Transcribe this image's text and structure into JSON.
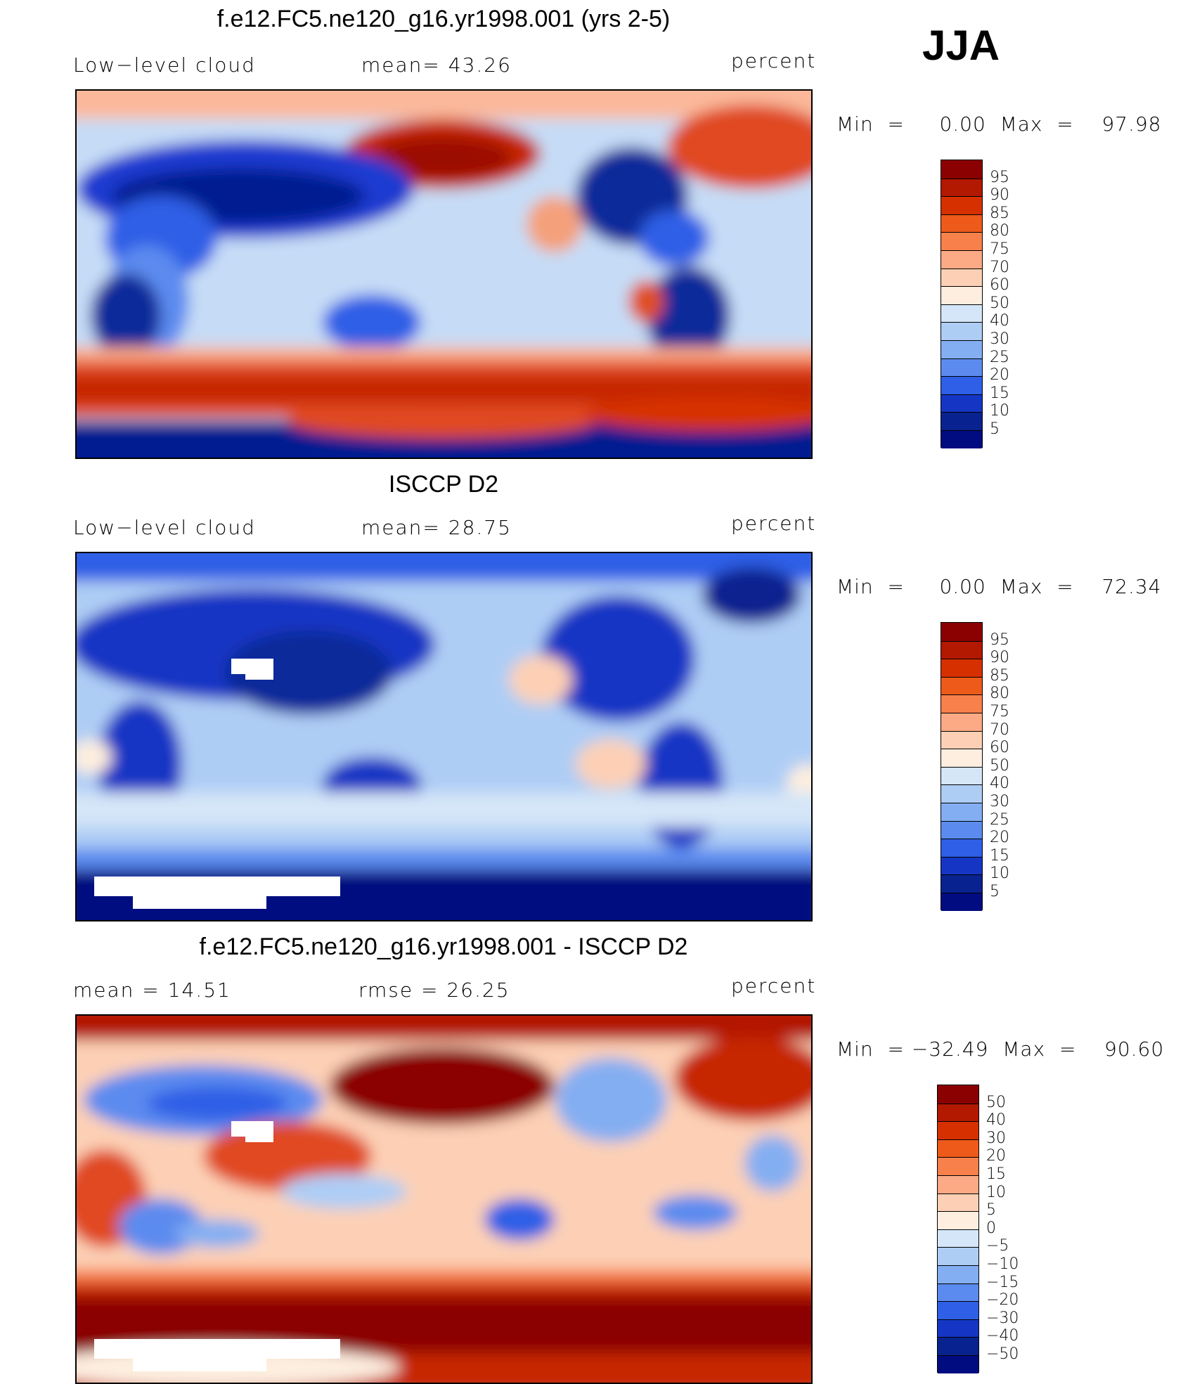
{
  "season": "JJA",
  "panels": [
    {
      "title": "f.e12.FC5.ne120_g16.yr1998.001 (yrs 2-5)",
      "left_label": "Low−level cloud",
      "mid_label": "mean=   43.26",
      "right_label": "percent",
      "minmax": "Min  =     0.00  Max  =    97.98",
      "colorbar": {
        "labels": [
          "95",
          "90",
          "85",
          "80",
          "75",
          "70",
          "60",
          "50",
          "40",
          "30",
          "25",
          "20",
          "15",
          "10",
          "5"
        ],
        "colors": [
          "#8b0000",
          "#b31800",
          "#d63000",
          "#ee5a1a",
          "#f8804a",
          "#fbaa85",
          "#fdd0b5",
          "#fdeedf",
          "#d4e6f8",
          "#aecdf5",
          "#84aef2",
          "#5b8bef",
          "#2e5fe6",
          "#1536c4",
          "#08238f",
          "#000c80"
        ]
      }
    },
    {
      "title": "ISCCP D2",
      "left_label": "Low−level cloud",
      "mid_label": "mean=   28.75",
      "right_label": "percent",
      "minmax": "Min  =     0.00  Max  =    72.34",
      "colorbar": {
        "labels": [
          "95",
          "90",
          "85",
          "80",
          "75",
          "70",
          "60",
          "50",
          "40",
          "30",
          "25",
          "20",
          "15",
          "10",
          "5"
        ],
        "colors": [
          "#8b0000",
          "#b31800",
          "#d63000",
          "#ee5a1a",
          "#f8804a",
          "#fbaa85",
          "#fdd0b5",
          "#fdeedf",
          "#d4e6f8",
          "#aecdf5",
          "#84aef2",
          "#5b8bef",
          "#2e5fe6",
          "#1536c4",
          "#08238f",
          "#000c80"
        ]
      }
    },
    {
      "title": "f.e12.FC5.ne120_g16.yr1998.001 - ISCCP D2",
      "left_label": "mean  =    14.51",
      "mid_label": "rmse  =    26.25",
      "right_label": "percent",
      "minmax": "Min  = −32.49  Max  =    90.60",
      "colorbar": {
        "labels": [
          "50",
          "40",
          "30",
          "20",
          "15",
          "10",
          "5",
          "0",
          "−5",
          "−10",
          "−15",
          "−20",
          "−30",
          "−40",
          "−50"
        ],
        "colors": [
          "#8b0000",
          "#b31800",
          "#d63000",
          "#ee5a1a",
          "#f8804a",
          "#fbaa85",
          "#fdd0b5",
          "#fdeedf",
          "#d4e6f8",
          "#aecdf5",
          "#84aef2",
          "#5b8bef",
          "#2e5fe6",
          "#1536c4",
          "#08238f",
          "#000c80"
        ]
      }
    }
  ]
}
